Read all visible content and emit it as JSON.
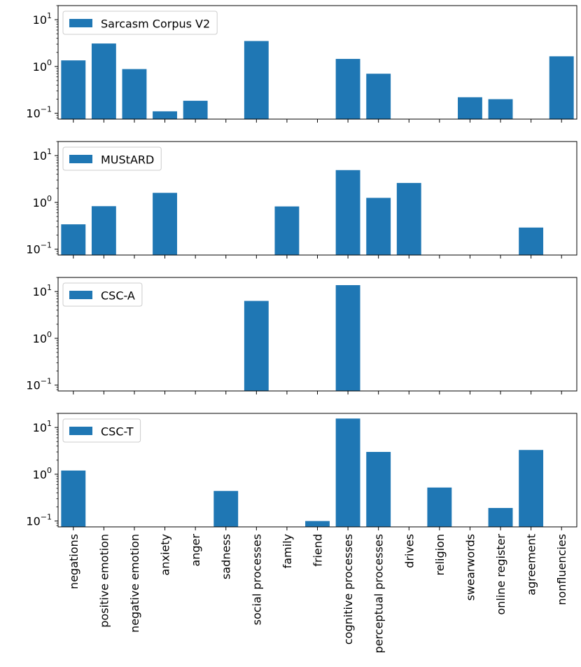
{
  "chart_data": {
    "type": "bar",
    "scale": "log",
    "ylim": [
      0.075,
      20
    ],
    "yticks": [
      {
        "value": 0.1,
        "base": "10",
        "exp": "−1"
      },
      {
        "value": 1,
        "base": "10",
        "exp": "0"
      },
      {
        "value": 10,
        "base": "10",
        "exp": "1"
      }
    ],
    "categories": [
      "negations",
      "positive emotion",
      "negative emotion",
      "anxiety",
      "anger",
      "sadness",
      "social processes",
      "family",
      "friend",
      "cognitive processes",
      "perceptual processes",
      "drives",
      "religion",
      "swearwords",
      "online register",
      "agreement",
      "nonfluencies"
    ],
    "legend_position": "upper-left",
    "bar_color": "#1f77b4",
    "series": [
      {
        "name": "Sarcasm Corpus V2",
        "values": [
          1.35,
          3.1,
          0.88,
          0.11,
          0.185,
          null,
          3.5,
          null,
          null,
          1.45,
          0.7,
          null,
          null,
          0.22,
          0.2,
          null,
          1.65
        ]
      },
      {
        "name": "MUStARD",
        "values": [
          0.34,
          0.83,
          null,
          1.6,
          null,
          null,
          null,
          0.82,
          null,
          4.9,
          1.25,
          2.6,
          null,
          null,
          null,
          0.29,
          null
        ]
      },
      {
        "name": "CSC-A",
        "values": [
          null,
          null,
          null,
          null,
          null,
          null,
          6.3,
          null,
          null,
          13.7,
          null,
          null,
          null,
          null,
          null,
          null,
          null
        ]
      },
      {
        "name": "CSC-T",
        "values": [
          1.2,
          null,
          null,
          null,
          null,
          0.44,
          null,
          null,
          0.1,
          15.5,
          3.0,
          null,
          0.52,
          null,
          0.19,
          3.3,
          null
        ]
      }
    ]
  }
}
